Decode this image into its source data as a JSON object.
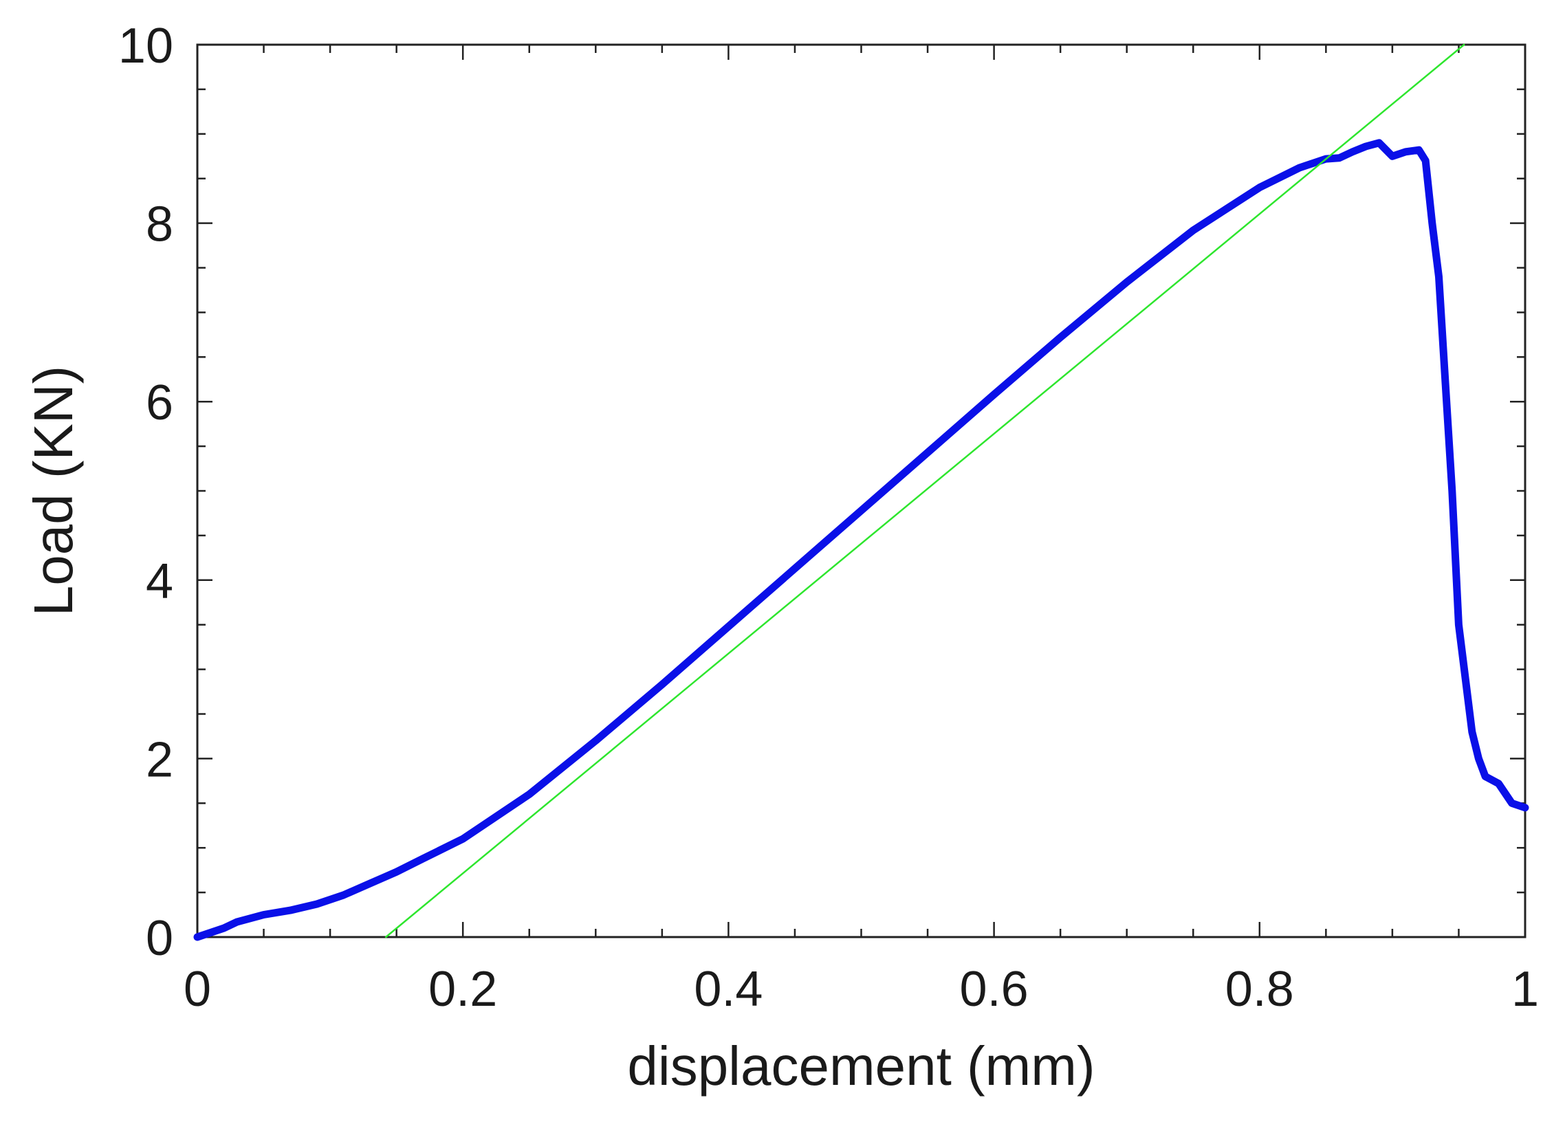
{
  "chart_data": {
    "type": "line",
    "title": "",
    "xlabel": "displacement (mm)",
    "ylabel": "Load (KN)",
    "xlim": [
      0,
      1
    ],
    "ylim": [
      0,
      10
    ],
    "xticks": [
      0,
      0.2,
      0.4,
      0.6,
      0.8,
      1
    ],
    "xtick_labels": [
      "0",
      "0.2",
      "0.4",
      "0.6",
      "0.8",
      "1"
    ],
    "yticks": [
      0,
      2,
      4,
      6,
      8,
      10
    ],
    "ytick_labels": [
      "0",
      "2",
      "4",
      "6",
      "8",
      "10"
    ],
    "grid": false,
    "legend": "none",
    "series": [
      {
        "color": "#0a10e8",
        "style": "thick",
        "x": [
          0,
          0.01,
          0.02,
          0.03,
          0.05,
          0.07,
          0.09,
          0.11,
          0.13,
          0.15,
          0.17,
          0.2,
          0.25,
          0.3,
          0.35,
          0.4,
          0.45,
          0.5,
          0.55,
          0.6,
          0.65,
          0.7,
          0.75,
          0.8,
          0.83,
          0.85,
          0.86,
          0.87,
          0.88,
          0.89,
          0.9,
          0.91,
          0.92,
          0.925,
          0.93,
          0.935,
          0.94,
          0.945,
          0.95,
          0.955,
          0.96,
          0.965,
          0.97,
          0.98,
          0.99,
          1.0
        ],
        "y": [
          0,
          0.05,
          0.1,
          0.17,
          0.25,
          0.3,
          0.37,
          0.47,
          0.6,
          0.73,
          0.88,
          1.1,
          1.6,
          2.2,
          2.83,
          3.48,
          4.13,
          4.78,
          5.43,
          6.08,
          6.72,
          7.34,
          7.92,
          8.4,
          8.62,
          8.72,
          8.73,
          8.8,
          8.86,
          8.9,
          8.75,
          8.8,
          8.82,
          8.7,
          8.0,
          7.4,
          6.2,
          5.0,
          3.5,
          2.9,
          2.3,
          2.0,
          1.8,
          1.72,
          1.5,
          1.45
        ]
      },
      {
        "color": "#2ee62e",
        "style": "thin",
        "x": [
          0.142,
          0.954
        ],
        "y": [
          0,
          10
        ]
      }
    ]
  }
}
